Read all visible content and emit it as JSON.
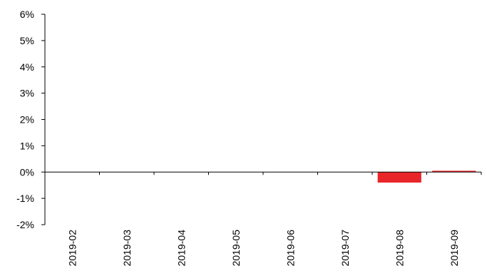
{
  "chart_data": {
    "type": "bar",
    "categories": [
      "2019-02",
      "2019-03",
      "2019-04",
      "2019-05",
      "2019-06",
      "2019-07",
      "2019-08",
      "2019-09"
    ],
    "values": [
      0,
      0,
      0,
      0,
      0,
      0,
      -0.4,
      0.05
    ],
    "y_ticks": [
      "6%",
      "5%",
      "4%",
      "3%",
      "2%",
      "1%",
      "0%",
      "-1%",
      "-2%"
    ],
    "ylim": [
      -2,
      6
    ],
    "unit": "%",
    "bar_color": "#e8262a",
    "grid": false,
    "legend": "none"
  }
}
